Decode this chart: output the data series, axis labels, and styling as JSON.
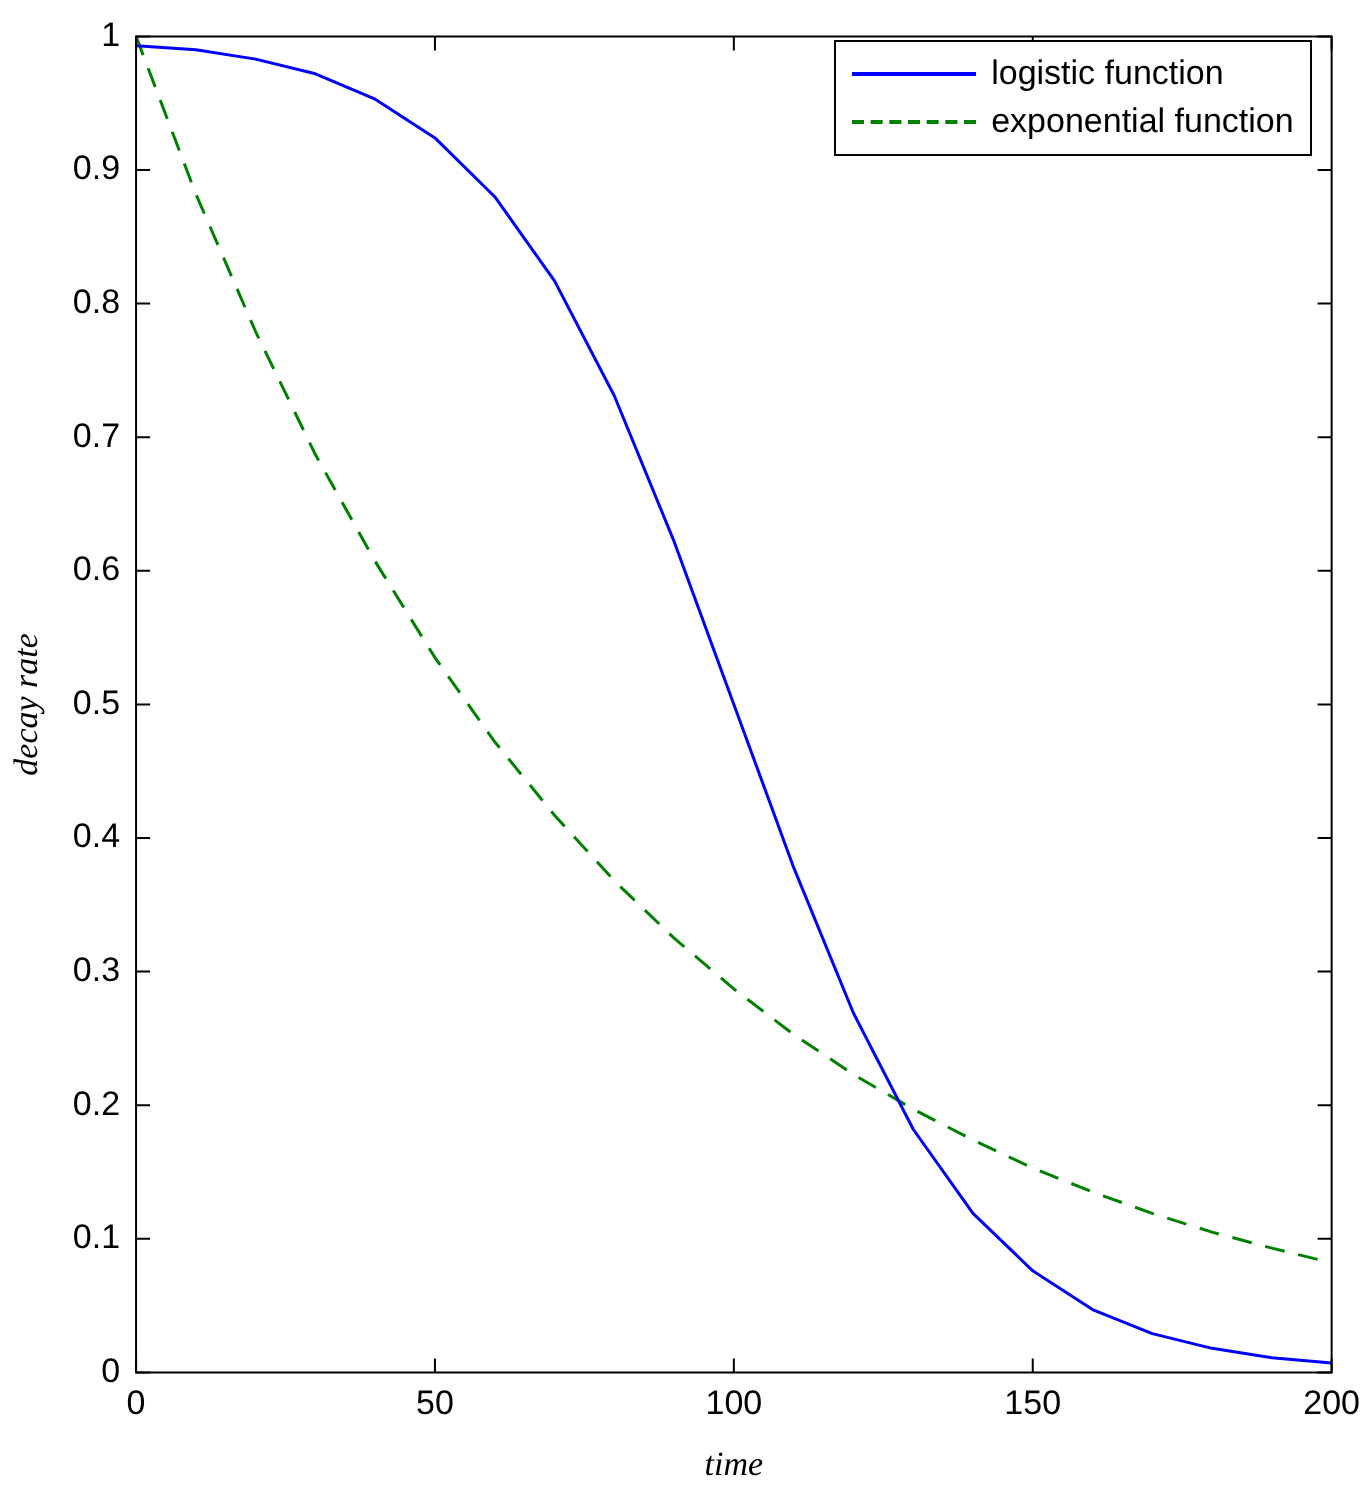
{
  "chart_data": {
    "type": "line",
    "xlabel": "time",
    "ylabel": "decay rate",
    "x": [
      0,
      10,
      20,
      30,
      40,
      50,
      60,
      70,
      80,
      90,
      100,
      110,
      120,
      130,
      140,
      150,
      160,
      170,
      180,
      190,
      200
    ],
    "series": [
      {
        "name": "logistic function",
        "color": "#0000ff",
        "line_style": "solid",
        "values": [
          0.993,
          0.99,
          0.983,
          0.972,
          0.953,
          0.924,
          0.88,
          0.817,
          0.731,
          0.622,
          0.5,
          0.378,
          0.269,
          0.182,
          0.119,
          0.076,
          0.047,
          0.029,
          0.018,
          0.011,
          0.007
        ]
      },
      {
        "name": "exponential function",
        "color": "#008000",
        "line_style": "dashed",
        "values": [
          1,
          0.882,
          0.779,
          0.687,
          0.607,
          0.535,
          0.472,
          0.417,
          0.368,
          0.325,
          0.287,
          0.253,
          0.223,
          0.197,
          0.174,
          0.153,
          0.135,
          0.119,
          0.105,
          0.093,
          0.082
        ]
      }
    ],
    "xlim": [
      0,
      200
    ],
    "xticks": [
      0,
      50,
      100,
      150,
      200
    ],
    "ylim": [
      0,
      1
    ],
    "yticks": [
      0,
      0.1,
      0.2,
      0.3,
      0.4,
      0.5,
      0.6,
      0.7,
      0.8,
      0.9,
      1
    ],
    "grid": false,
    "legend": "top right",
    "marker": "none"
  }
}
